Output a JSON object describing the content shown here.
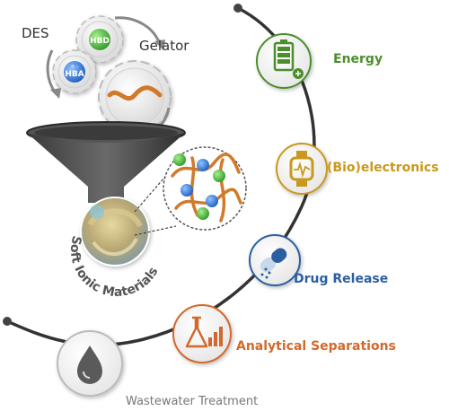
{
  "diagram": {
    "inputs": {
      "des_label": "DES",
      "gelator_label": "Gelator",
      "hbd_label": "HBD",
      "hba_label": "HBA",
      "hba_charges": "+ -"
    },
    "product_label": "Soft Ionic Materials",
    "applications": [
      {
        "label": "Energy",
        "icon": "battery-plug-icon",
        "color": "#4c8e2c"
      },
      {
        "label": "(Bio)electronics",
        "icon": "smartwatch-icon",
        "color": "#c8991c"
      },
      {
        "label": "Drug Release",
        "icon": "capsule-icon",
        "color": "#2a5fa0"
      },
      {
        "label": "Analytical Separations",
        "icon": "flask-chart-icon",
        "color": "#d2692c"
      },
      {
        "label": "Wastewater Treatment",
        "icon": "water-drop-icon",
        "color": "#777777"
      }
    ]
  }
}
